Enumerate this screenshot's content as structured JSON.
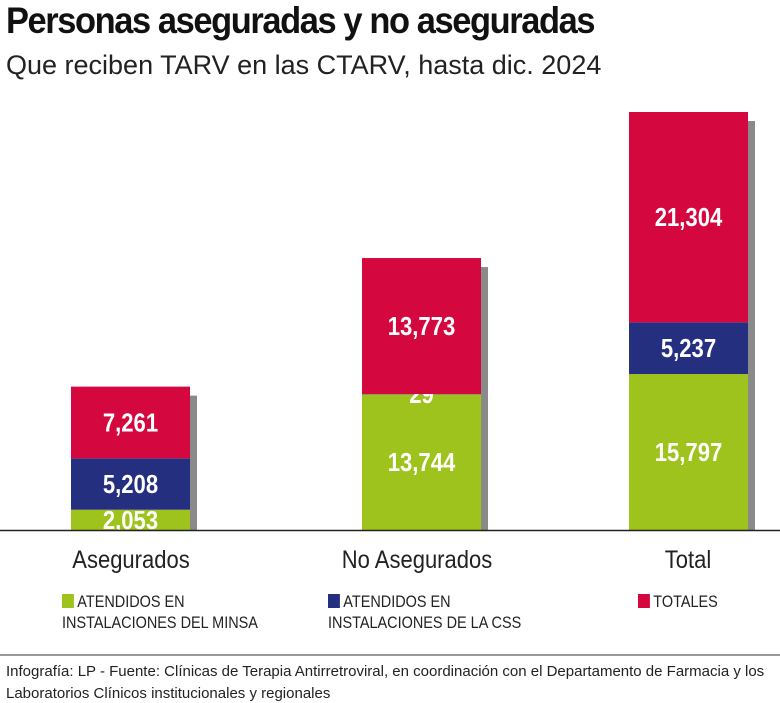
{
  "chart_data": {
    "type": "bar",
    "stacked": true,
    "title": "Personas aseguradas y no aseguradas",
    "subtitle": "Que reciben TARV en las CTARV, hasta dic. 2024",
    "categories": [
      "Asegurados",
      "No Asegurados",
      "Total"
    ],
    "series": [
      {
        "name": "ATENDIDOS EN INSTALACIONES DEL MINSA",
        "color": "#9ec31c",
        "values": [
          2053,
          13744,
          15797
        ],
        "labels": [
          "2,053",
          "13,744",
          "15,797"
        ]
      },
      {
        "name": "ATENDIDOS EN INSTALACIONES DE LA CSS",
        "color": "#252f80",
        "values": [
          5208,
          29,
          5237
        ],
        "labels": [
          "5,208",
          "29",
          "5,237"
        ]
      },
      {
        "name": "TOTALES",
        "color": "#d5073f",
        "values": [
          7261,
          13773,
          21304
        ],
        "labels": [
          "7,261",
          "13,773",
          "21,304"
        ]
      }
    ],
    "legend_position": "bottom",
    "grid": false,
    "shadow_color": "#8a8a8a"
  },
  "legend": [
    {
      "line1": "ATENDIDOS EN",
      "line2": "INSTALACIONES DEL MINSA"
    },
    {
      "line1": "ATENDIDOS EN",
      "line2": "INSTALACIONES DE LA CSS"
    },
    {
      "line1": "TOTALES",
      "line2": ""
    }
  ],
  "source": "Infografía: LP - Fuente:  Clínicas de Terapia Antirretroviral, en coordinación con el Departamento de Farmacia y los Laboratorios Clínicos institucionales y regionales"
}
